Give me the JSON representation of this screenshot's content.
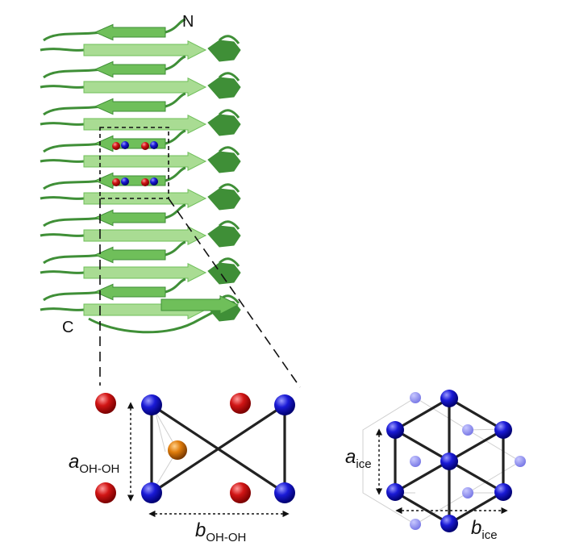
{
  "protein": {
    "n_terminus_label": "N",
    "c_terminus_label": "C"
  },
  "motif": {
    "a_label": {
      "main": "a",
      "sub": "OH-OH"
    },
    "b_label": {
      "main": "b",
      "sub": "OH-OH"
    }
  },
  "ice": {
    "a_label": {
      "main": "a",
      "sub": "ice"
    },
    "b_label": {
      "main": "b",
      "sub": "ice"
    }
  },
  "colors": {
    "strand": "#6fbf5a",
    "strand_light": "#a9dc93",
    "strand_dark": "#3f8f37",
    "oxygen_red": "#d11515",
    "hydroxyl_blue": "#1a1ad6",
    "carbon_orange": "#e07d0c",
    "ice_ghost": "#8c8cf0"
  }
}
